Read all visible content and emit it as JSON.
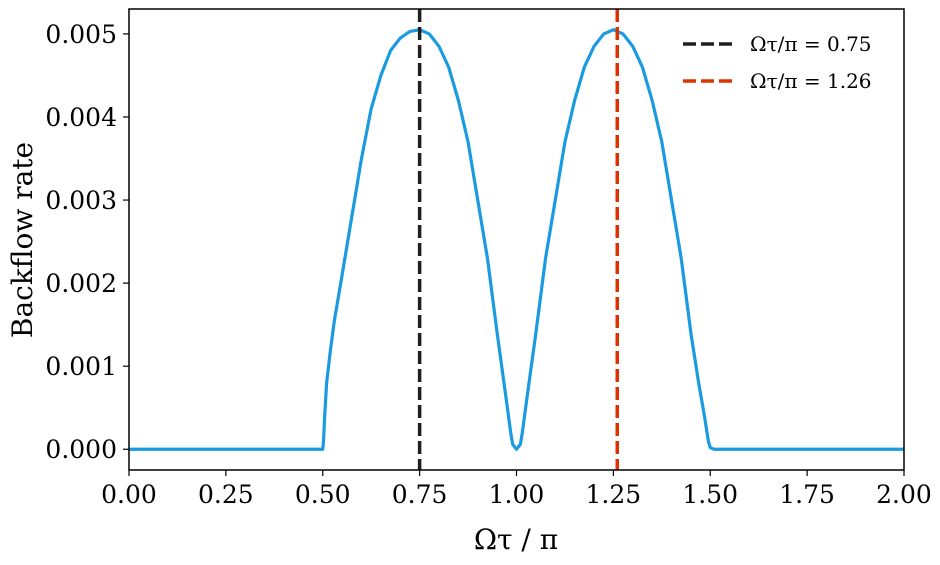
{
  "chart_data": {
    "type": "line",
    "xlabel": "Ωτ / π",
    "ylabel": "Backflow rate",
    "xlim": [
      0.0,
      2.0
    ],
    "ylim": [
      -0.00025,
      0.0053
    ],
    "xticks": [
      0.0,
      0.25,
      0.5,
      0.75,
      1.0,
      1.25,
      1.5,
      1.75,
      2.0
    ],
    "xtick_labels": [
      "0.00",
      "0.25",
      "0.50",
      "0.75",
      "1.00",
      "1.25",
      "1.50",
      "1.75",
      "2.00"
    ],
    "yticks": [
      0.0,
      0.001,
      0.002,
      0.003,
      0.004,
      0.005
    ],
    "ytick_labels": [
      "0.000",
      "0.001",
      "0.002",
      "0.003",
      "0.004",
      "0.005"
    ],
    "grid": false,
    "legend_position": "top-right",
    "series": [
      {
        "color": "#1a9be0",
        "x": [
          0.0,
          0.25,
          0.49,
          0.5,
          0.502,
          0.505,
          0.51,
          0.52,
          0.53,
          0.55,
          0.575,
          0.6,
          0.625,
          0.65,
          0.675,
          0.7,
          0.725,
          0.75,
          0.775,
          0.8,
          0.825,
          0.85,
          0.875,
          0.9,
          0.925,
          0.95,
          0.975,
          0.985,
          0.99,
          1.0,
          1.01,
          1.015,
          1.025,
          1.05,
          1.075,
          1.1,
          1.125,
          1.15,
          1.175,
          1.2,
          1.225,
          1.25,
          1.275,
          1.3,
          1.325,
          1.35,
          1.375,
          1.4,
          1.425,
          1.45,
          1.47,
          1.485,
          1.49,
          1.495,
          1.5,
          1.51,
          1.75,
          2.0
        ],
        "y": [
          0.0,
          0.0,
          0.0,
          0.0,
          0.0001,
          0.0004,
          0.0008,
          0.0012,
          0.00155,
          0.0021,
          0.0028,
          0.0035,
          0.0041,
          0.0045,
          0.0048,
          0.00495,
          0.00503,
          0.00505,
          0.005,
          0.00485,
          0.0046,
          0.0042,
          0.0037,
          0.003,
          0.0023,
          0.0014,
          0.00055,
          0.0002,
          6e-05,
          0.0,
          6e-05,
          0.0002,
          0.00055,
          0.0014,
          0.0023,
          0.003,
          0.0037,
          0.0042,
          0.0046,
          0.00485,
          0.005,
          0.00505,
          0.005,
          0.00485,
          0.0046,
          0.0042,
          0.0037,
          0.003,
          0.0023,
          0.0014,
          0.0008,
          0.0004,
          0.00025,
          0.0001,
          2e-05,
          0.0,
          0.0,
          0.0
        ]
      }
    ],
    "vlines": [
      {
        "x": 0.75,
        "color": "#1f1f1f",
        "label": "Ωτ/π = 0.75"
      },
      {
        "x": 1.26,
        "color": "#dd3300",
        "label": "Ωτ/π = 1.26"
      }
    ]
  }
}
